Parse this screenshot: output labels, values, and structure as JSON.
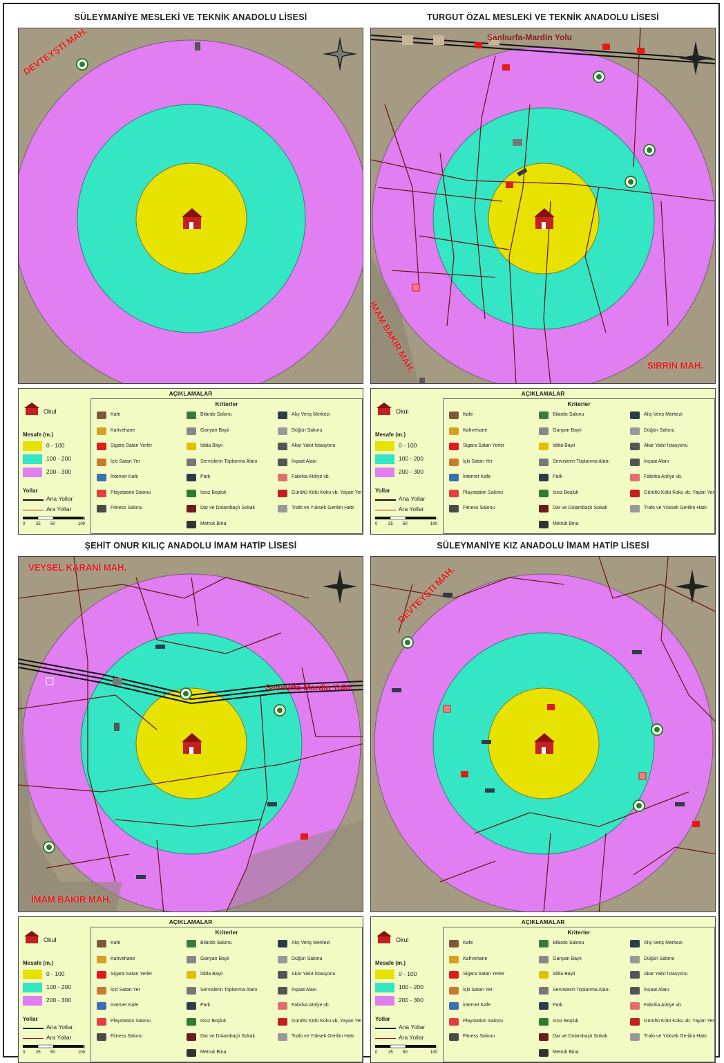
{
  "panels": [
    {
      "title": "SÜLEYMANİYE MESLEKİ VE TEKNİK ANADOLU LİSESİ",
      "places": [
        "DEVTEYŞTİ MAH."
      ],
      "road_names": []
    },
    {
      "title": "TURGUT ÖZAL MESLEKİ VE TEKNİK ANADOLU LİSESİ",
      "places": [
        "İMAM BAKIR MAH.",
        "SIRRIN MAH."
      ],
      "road_names": [
        "Şanlıurfa-Mardin Yolu"
      ]
    },
    {
      "title": "ŞEHİT ONUR KILIÇ ANADOLU İMAM HATİP LİSESİ",
      "places": [
        "VEYSEL KARANİ MAH.",
        "İMAM BAKIR MAH."
      ],
      "road_names": [
        "Şanlıurfa-Mardin Yolu"
      ]
    },
    {
      "title": "SÜLEYMANİYE KIZ ANADOLU İMAM HATİP LİSESİ",
      "places": [
        "DEVTEYŞTİ MAH."
      ],
      "road_names": []
    }
  ],
  "legend": {
    "title": "AÇIKLAMALAR",
    "school": "Okul",
    "distance_header": "Mesafe (m.)",
    "bands": [
      {
        "label": "0 - 100",
        "color": "#e8e200"
      },
      {
        "label": "100 - 200",
        "color": "#34e6c4"
      },
      {
        "label": "200 - 300",
        "color": "#e07ef2"
      }
    ],
    "roads_header": "Yollar",
    "roads": [
      {
        "label": "Ana Yollar",
        "color": "#111111"
      },
      {
        "label": "Ara Yollar",
        "color": "#8b1e1e"
      }
    ],
    "scale_ticks": [
      "0",
      "25",
      "50",
      "100"
    ],
    "scale_unit": "M",
    "criteria_title": "Kriterler",
    "criteria": [
      {
        "label": "Kafe",
        "icon": "cafe-icon"
      },
      {
        "label": "Kahvehane",
        "icon": "coffeehouse-icon"
      },
      {
        "label": "Sigara Satan Yerler",
        "icon": "cigarette-icon"
      },
      {
        "label": "İçki Satan Yer",
        "icon": "alcohol-icon"
      },
      {
        "label": "İnternet Kafe",
        "icon": "internet-cafe-icon"
      },
      {
        "label": "Playstation Salonu",
        "icon": "playstation-icon"
      },
      {
        "label": "Fitness Salonu",
        "icon": "fitness-icon"
      },
      {
        "label": "Bilardo Salonu",
        "icon": "billiard-icon"
      },
      {
        "label": "Ganyan Bayii",
        "icon": "betting-icon"
      },
      {
        "label": "İddia Bayii",
        "icon": "lottery-icon"
      },
      {
        "label": "Servislerin Toplanma Alanı",
        "icon": "bus-icon"
      },
      {
        "label": "Park",
        "icon": "park-icon"
      },
      {
        "label": "Issız Boşluk",
        "icon": "empty-area-icon"
      },
      {
        "label": "Dar ve Dolambaçlı Sokak",
        "icon": "narrow-street-icon"
      },
      {
        "label": "Metruk Bina",
        "icon": "abandoned-building-icon"
      },
      {
        "label": "Alış Veriş Merkezi",
        "icon": "mall-icon"
      },
      {
        "label": "Düğün Salonu",
        "icon": "wedding-hall-icon"
      },
      {
        "label": "Akar Yakıt İstasyonu",
        "icon": "fuel-station-icon"
      },
      {
        "label": "İnşaat Alanı",
        "icon": "construction-icon"
      },
      {
        "label": "Fabrika Atölye vb.",
        "icon": "factory-icon"
      },
      {
        "label": "Gürültü Kötü Koku vb. Yayan Yer",
        "icon": "noise-icon"
      },
      {
        "label": "Trafo ve Yüksek Gerilim Hattı",
        "icon": "transformer-icon"
      }
    ]
  },
  "colors": {
    "band_inner": "#e8e200",
    "band_middle": "#34e6c4",
    "band_outer": "#e07ef2",
    "ground": "#a59a82",
    "legend_bg": "#f3fbc5",
    "place_label": "#e01b1b"
  }
}
